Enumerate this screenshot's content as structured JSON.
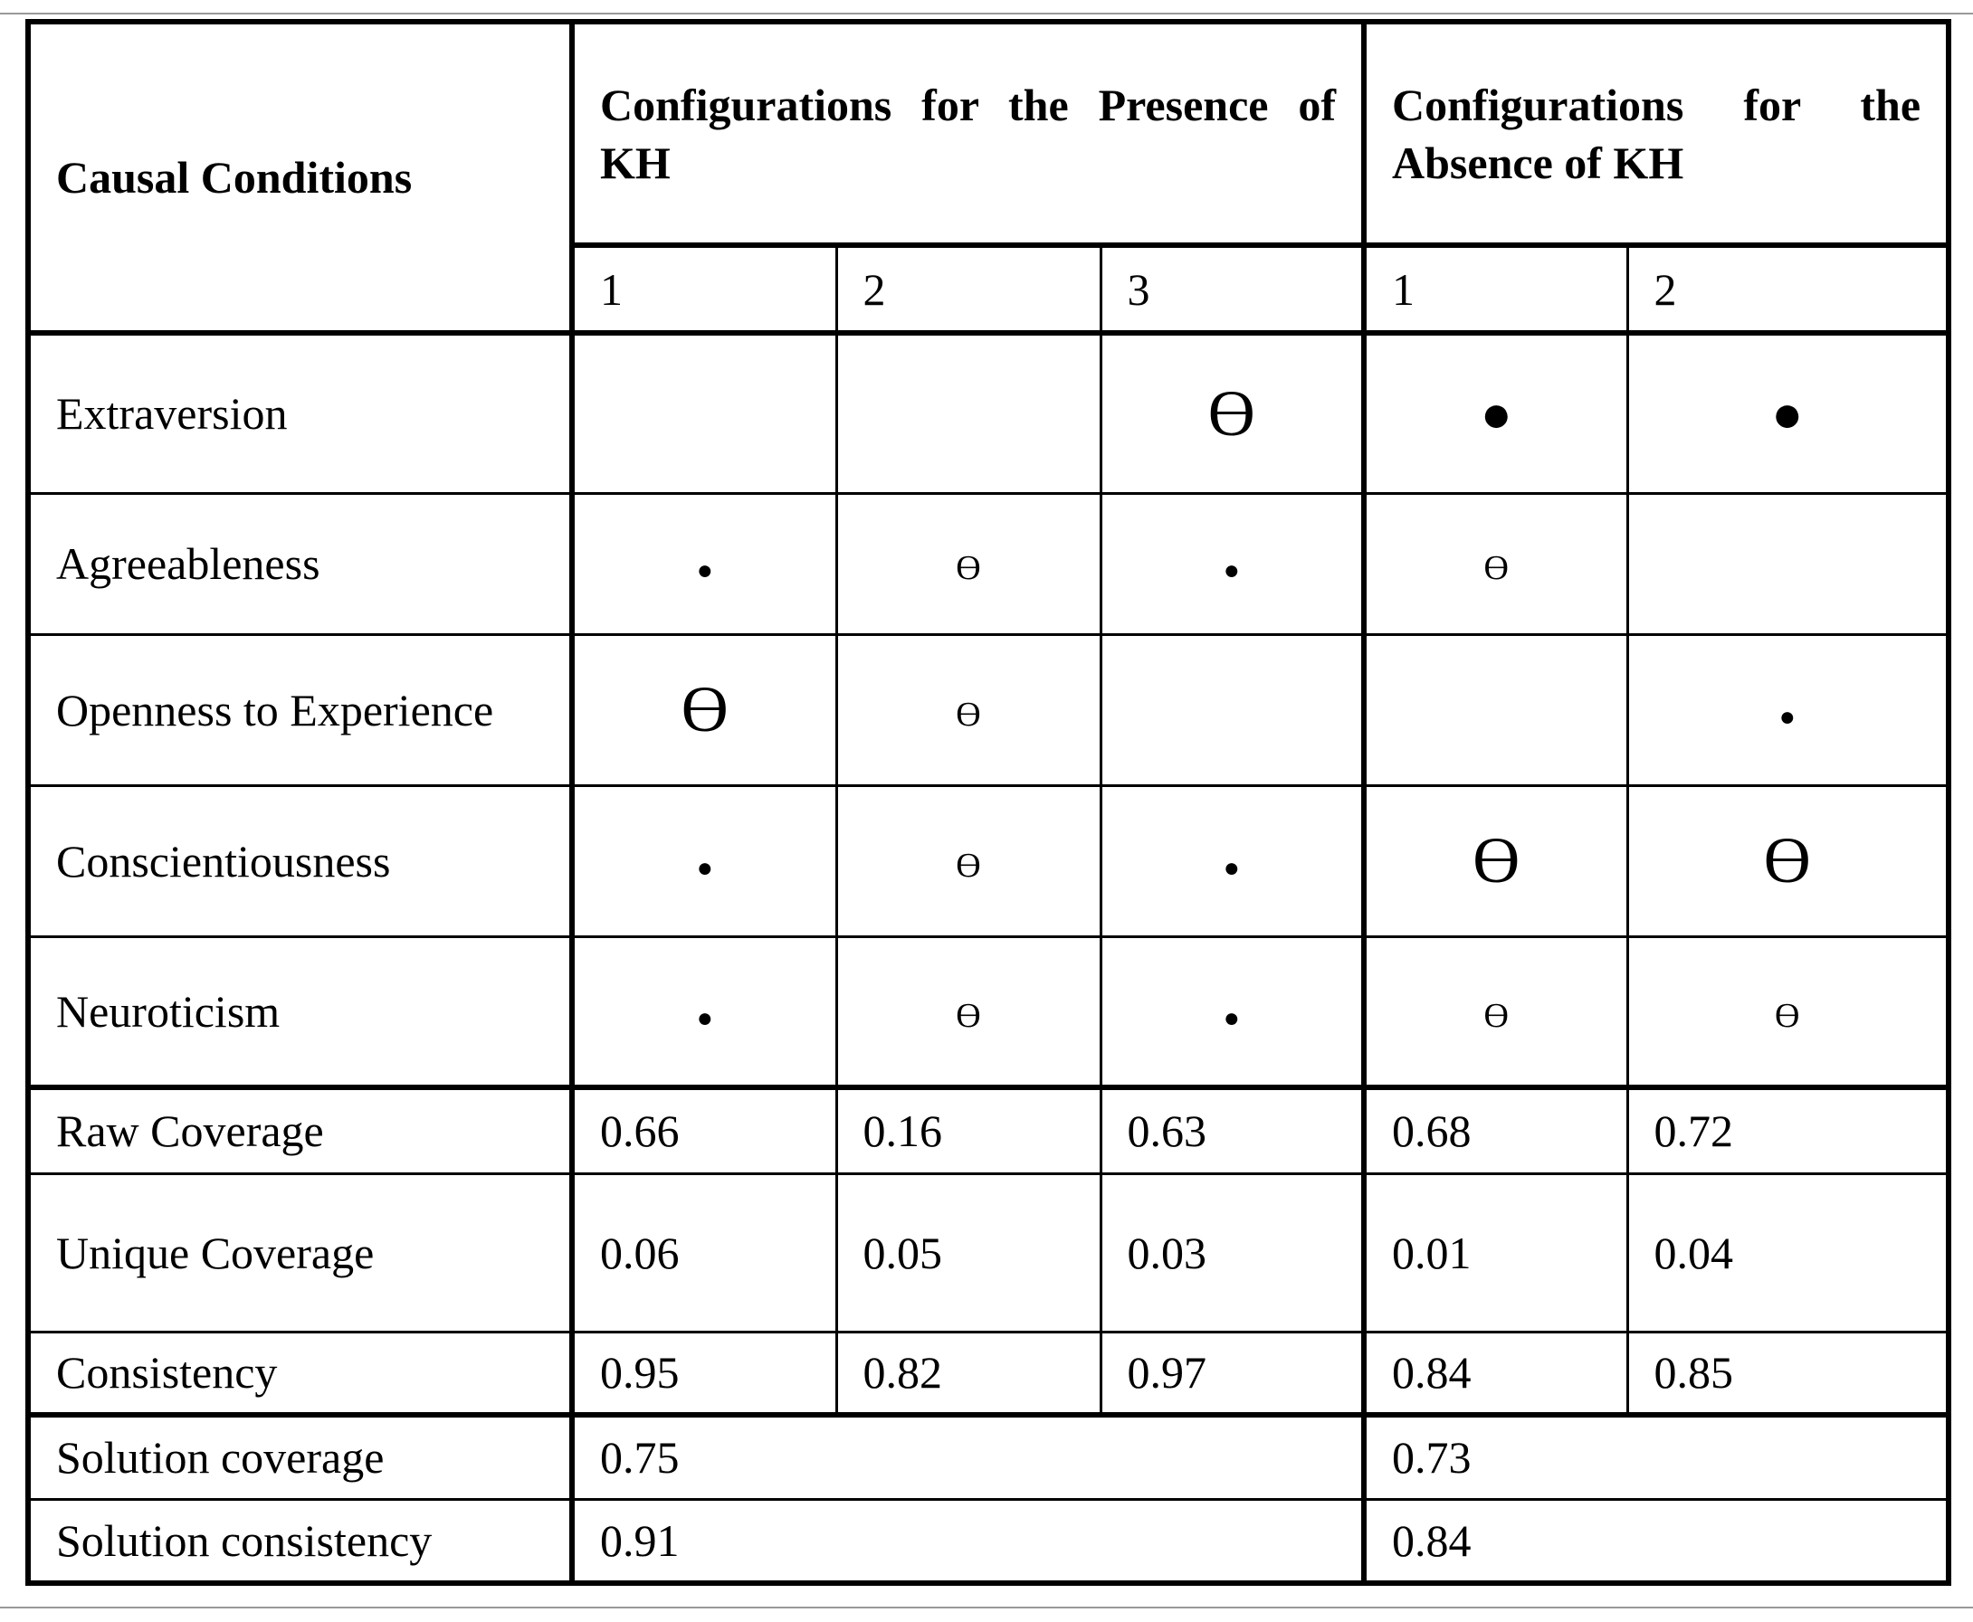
{
  "header": {
    "condition_label": "Causal Conditions",
    "groups": [
      "Configurations for the Presence of KH",
      "Configurations for the Absence of KH"
    ],
    "config_numbers": [
      1,
      2,
      3,
      1,
      2
    ]
  },
  "conditions": [
    {
      "label": "Extraversion",
      "cells": [
        null,
        null,
        {
          "symbol": "ϴ",
          "core": true
        },
        {
          "symbol": "●",
          "core": true
        },
        {
          "symbol": "●",
          "core": true
        }
      ]
    },
    {
      "label": "Agreeableness",
      "cells": [
        {
          "symbol": "●",
          "core": false
        },
        {
          "symbol": "ϴ",
          "core": false
        },
        {
          "symbol": "●",
          "core": false
        },
        {
          "symbol": "ϴ",
          "core": false
        },
        null
      ]
    },
    {
      "label": "Openness to Experience",
      "cells": [
        {
          "symbol": "ϴ",
          "core": true
        },
        {
          "symbol": "ϴ",
          "core": false
        },
        null,
        null,
        {
          "symbol": "●",
          "core": false
        }
      ]
    },
    {
      "label": "Conscientiousness",
      "cells": [
        {
          "symbol": "●",
          "core": false
        },
        {
          "symbol": "ϴ",
          "core": false
        },
        {
          "symbol": "●",
          "core": false
        },
        {
          "symbol": "ϴ",
          "core": true
        },
        {
          "symbol": "ϴ",
          "core": true
        }
      ]
    },
    {
      "label": "Neuroticism",
      "cells": [
        {
          "symbol": "●",
          "core": false
        },
        {
          "symbol": "ϴ",
          "core": false
        },
        {
          "symbol": "●",
          "core": false
        },
        {
          "symbol": "ϴ",
          "core": false
        },
        {
          "symbol": "ϴ",
          "core": false
        }
      ]
    }
  ],
  "metrics": [
    {
      "label": "Raw Coverage",
      "values": [
        0.66,
        0.16,
        0.63,
        0.68,
        0.72
      ]
    },
    {
      "label": "Unique Coverage",
      "values": [
        0.06,
        0.05,
        0.03,
        0.01,
        0.04
      ]
    },
    {
      "label": "Consistency",
      "values": [
        0.95,
        0.82,
        0.97,
        0.84,
        0.85
      ]
    }
  ],
  "solution": [
    {
      "label": "Solution coverage",
      "values": [
        0.75,
        0.73
      ]
    },
    {
      "label": "Solution consistency",
      "values": [
        0.91,
        0.84
      ]
    }
  ]
}
